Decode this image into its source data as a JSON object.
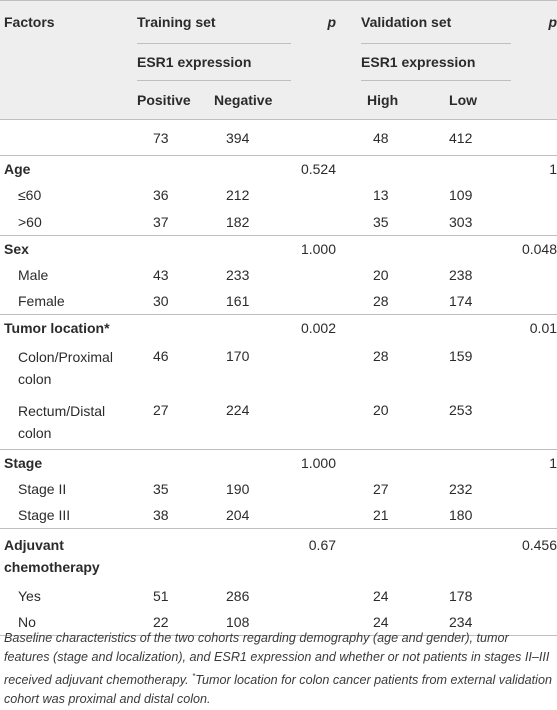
{
  "header": {
    "factors": "Factors",
    "training_set": "Training set",
    "p1": "p",
    "validation_set": "Validation set",
    "p2": "p",
    "esr1_train": "ESR1 expression",
    "esr1_valid": "ESR1 expression",
    "positive": "Positive",
    "negative": "Negative",
    "high": "High",
    "low": "Low"
  },
  "totals": {
    "pos": "73",
    "neg": "394",
    "high": "48",
    "low": "412"
  },
  "rows": [
    {
      "label": "Age",
      "group": true,
      "p_train": "0.524",
      "p_valid": "1"
    },
    {
      "label": "≤60",
      "pos": "36",
      "neg": "212",
      "high": "13",
      "low": "109"
    },
    {
      "label": ">60",
      "pos": "37",
      "neg": "182",
      "high": "35",
      "low": "303"
    },
    {
      "label": "Sex",
      "group": true,
      "p_train": "1.000",
      "p_valid": "0.048"
    },
    {
      "label": "Male",
      "pos": "43",
      "neg": "233",
      "high": "20",
      "low": "238"
    },
    {
      "label": "Female",
      "pos": "30",
      "neg": "161",
      "high": "28",
      "low": "174"
    },
    {
      "label": "Tumor location*",
      "group": true,
      "p_train": "0.002",
      "p_valid": "0.01"
    },
    {
      "label": "Colon/Proximal",
      "label2": "colon",
      "pos": "46",
      "neg": "170",
      "high": "28",
      "low": "159"
    },
    {
      "label": "Rectum/Distal",
      "label2": "colon",
      "pos": "27",
      "neg": "224",
      "high": "20",
      "low": "253"
    },
    {
      "label": "Stage",
      "group": true,
      "p_train": "1.000",
      "p_valid": "1"
    },
    {
      "label": "Stage II",
      "pos": "35",
      "neg": "190",
      "high": "27",
      "low": "232"
    },
    {
      "label": "Stage III",
      "pos": "38",
      "neg": "204",
      "high": "21",
      "low": "180"
    },
    {
      "label": "Adjuvant",
      "label2": "chemotherapy",
      "group": true,
      "p_train": "0.67",
      "p_valid": "0.456"
    },
    {
      "label": "Yes",
      "pos": "51",
      "neg": "286",
      "high": "24",
      "low": "178"
    },
    {
      "label": "No",
      "pos": "22",
      "neg": "108",
      "high": "24",
      "low": "234"
    }
  ],
  "footnote": {
    "part1": "Baseline characteristics of the two cohorts regarding demography (age and gender), tumor features (stage and localization), and ESR1 expression and whether or not patients in stages II–III received adjuvant chemotherapy. ",
    "star": "*",
    "part2": "Tumor location for colon cancer patients from external validation cohort was proximal and distal colon."
  }
}
